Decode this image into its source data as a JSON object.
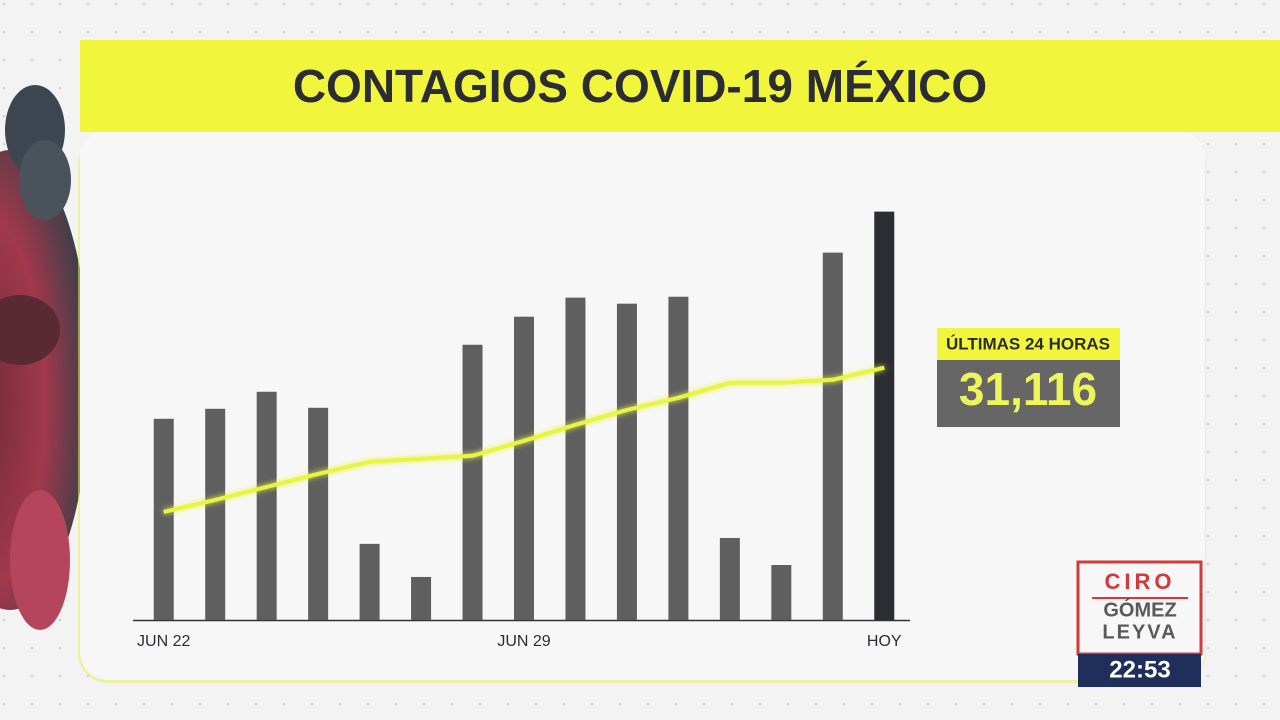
{
  "chart_data": {
    "type": "bar",
    "title": "CONTAGIOS COVID-19 MÉXICO",
    "categories": [
      "JUN 22",
      null,
      null,
      null,
      null,
      null,
      null,
      "JUN 29",
      null,
      null,
      null,
      null,
      null,
      null,
      "HOY"
    ],
    "values": [
      15330,
      16090,
      17390,
      16170,
      5800,
      3280,
      20970,
      23110,
      24560,
      24100,
      24630,
      6250,
      4190,
      27990,
      31116
    ],
    "value_labels": [
      null,
      null,
      null,
      null,
      null,
      null,
      null,
      null,
      null,
      null,
      null,
      null,
      null,
      null,
      "31,116"
    ],
    "colors": [
      "#5f5f5f",
      "#5f5f5f",
      "#5f5f5f",
      "#5f5f5f",
      "#5f5f5f",
      "#5f5f5f",
      "#5f5f5f",
      "#5f5f5f",
      "#5f5f5f",
      "#5f5f5f",
      "#5f5f5f",
      "#5f5f5f",
      "#5f5f5f",
      "#5f5f5f",
      "#2b2d33"
    ],
    "trend": {
      "color": "#e8f542",
      "values": [
        8240,
        9150,
        10140,
        11130,
        12050,
        12280,
        12510,
        13650,
        14870,
        16010,
        16930,
        18070,
        18070,
        18300,
        19220
      ]
    },
    "ylim": [
      0,
      32000
    ],
    "callout": {
      "title": "ÚLTIMAS 24 HORAS"
    }
  },
  "branding": {
    "line1": "CIRO",
    "line2": "GÓMEZ",
    "line3": "LEYVA",
    "time": "22:53"
  }
}
